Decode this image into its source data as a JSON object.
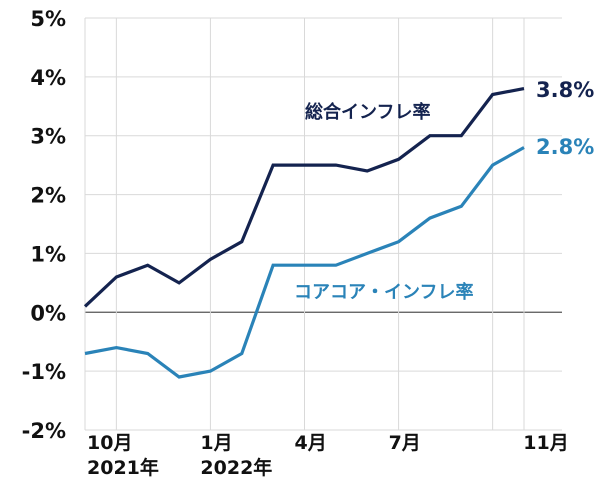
{
  "chart_data": {
    "type": "line",
    "title": "",
    "xlabel": "",
    "ylabel": "",
    "ylim": [
      -2,
      5
    ],
    "yticks": [
      "5%",
      "4%",
      "3%",
      "2%",
      "1%",
      "0%",
      "-1%",
      "-2%"
    ],
    "x": [
      "2021-09",
      "2021-10",
      "2021-11",
      "2021-12",
      "2022-01",
      "2022-02",
      "2022-03",
      "2022-04",
      "2022-05",
      "2022-06",
      "2022-07",
      "2022-08",
      "2022-09",
      "2022-10",
      "2022-11"
    ],
    "xtick_labels": [
      {
        "index": 1,
        "line1": "10月",
        "line2": "2021年"
      },
      {
        "index": 4,
        "line1": "1月",
        "line2": "2022年"
      },
      {
        "index": 7,
        "line1": "4月",
        "line2": ""
      },
      {
        "index": 10,
        "line1": "7月",
        "line2": ""
      },
      {
        "index": 14,
        "line1": "11月",
        "line2": ""
      }
    ],
    "grid": true,
    "series": [
      {
        "name": "総合インフレ率",
        "color": "#14234f",
        "values": [
          0.1,
          0.6,
          0.8,
          0.5,
          0.9,
          1.2,
          2.5,
          2.5,
          2.5,
          2.4,
          2.6,
          3.0,
          3.0,
          3.7,
          3.8
        ],
        "end_label": "3.8%"
      },
      {
        "name": "コアコア・インフレ率",
        "color": "#2a83b8",
        "values": [
          -0.7,
          -0.6,
          -0.7,
          -1.1,
          -1.0,
          -0.7,
          0.8,
          0.8,
          0.8,
          1.0,
          1.2,
          1.6,
          1.8,
          2.5,
          2.8
        ],
        "end_label": "2.8%"
      }
    ]
  }
}
